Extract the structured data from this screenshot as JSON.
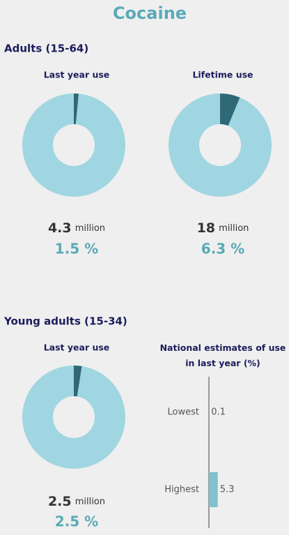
{
  "title": "Cocaine",
  "sections": [
    {
      "heading": "Adults (15-64)"
    },
    {
      "heading": "Young adults (15-34)"
    }
  ],
  "colors": {
    "share": "#2f6876",
    "rest": "#a0d6e1"
  },
  "chart_data": [
    {
      "type": "donut",
      "title": "Last year use",
      "values": [
        1.5
      ],
      "value_labels": [
        "1.5 %"
      ],
      "count": 4.3,
      "count_unit": "million"
    },
    {
      "type": "donut",
      "title": "Lifetime use",
      "values": [
        6.3
      ],
      "value_labels": [
        "6.3 %"
      ],
      "count": 18,
      "count_unit": "million"
    },
    {
      "type": "donut",
      "title": "Last year use",
      "values": [
        2.5
      ],
      "value_labels": [
        "2.5 %"
      ],
      "count": 2.5,
      "count_unit": "million"
    },
    {
      "type": "hbar",
      "title": "National estimates of use in last year (%)",
      "categories": [
        "Lowest",
        "Highest"
      ],
      "values": [
        0.1,
        5.3
      ],
      "color": "#80c1cd"
    }
  ]
}
